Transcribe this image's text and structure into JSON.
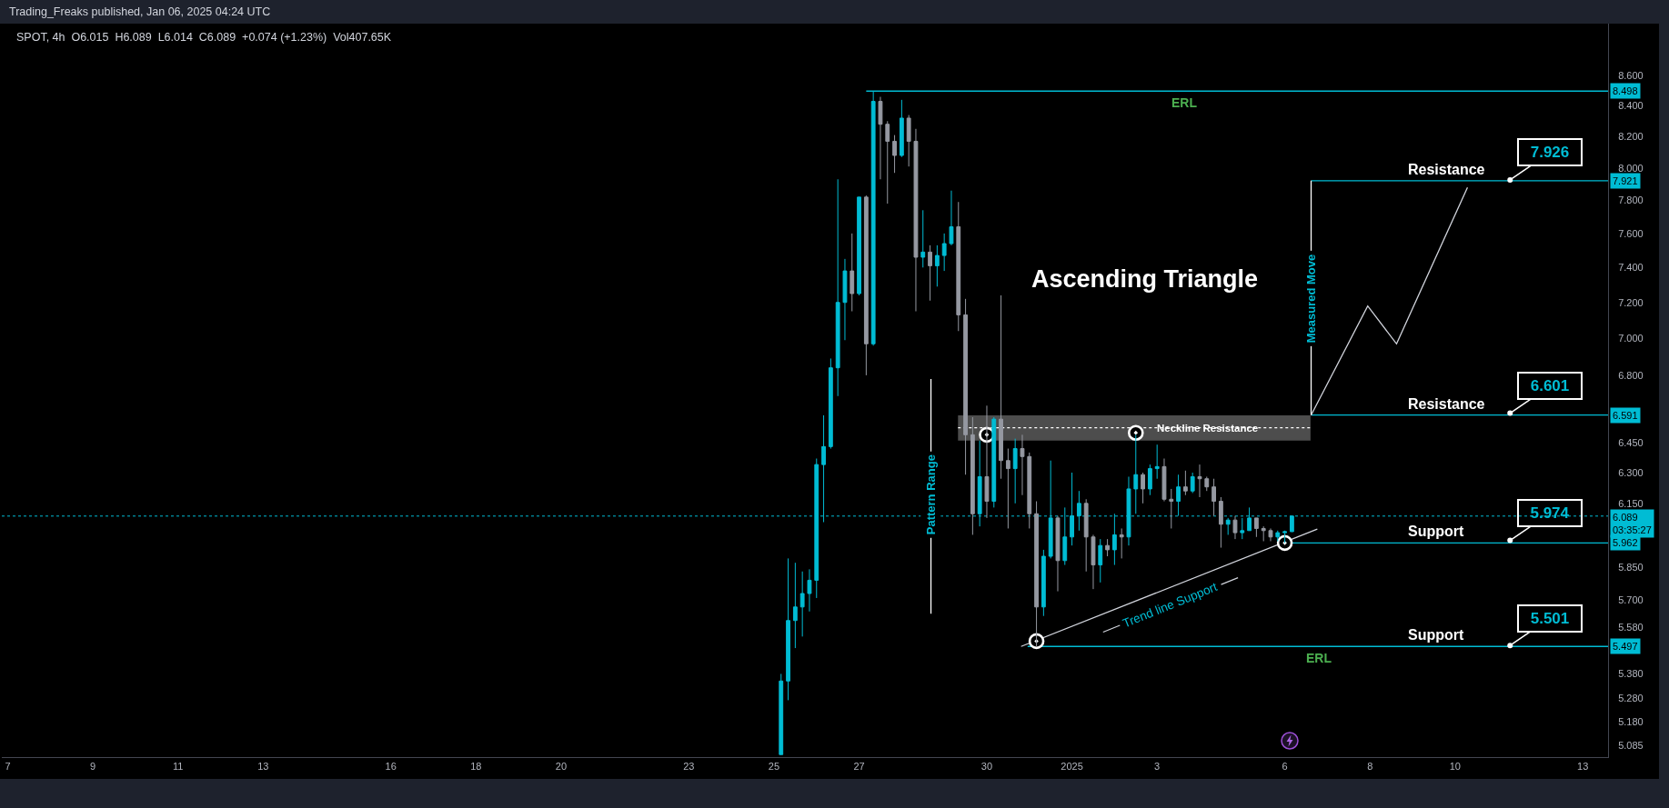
{
  "chart_data": {
    "type": "candlestick",
    "title": "Ascending Triangle",
    "subtitle": "SPOT, 4h  O6.015  H6.089  L6.014  C6.089  +0.074 (+1.23%)  Vol407.65K",
    "annotations": [
      "Trading_Freaks published, Jan 06, 2025 04:24 UTC",
      {
        "text": "ERL",
        "x": "2025-01-03T15:30",
        "y": 8.498
      },
      {
        "text": "Resistance",
        "x": "2025-01-09T19:20",
        "y": 7.921
      },
      {
        "text": "7.926",
        "x": "2025-01-11T07:00",
        "y": 7.926
      },
      {
        "text": "Resistance",
        "x": "2025-01-09T19:20",
        "y": 6.591
      },
      {
        "text": "6.601",
        "x": "2025-01-11T07:00",
        "y": 6.601
      },
      {
        "text": "Support",
        "x": "2025-01-09T13:15",
        "y": 5.962
      },
      {
        "text": "5.974",
        "x": "2025-01-11T07:00",
        "y": 5.974
      },
      {
        "text": "Support",
        "x": "2025-01-09T13:15",
        "y": 5.497
      },
      {
        "text": "5.501",
        "x": "2025-01-11T07:00",
        "y": 5.501
      },
      {
        "text": "ERL",
        "x": "2025-01-06T19:10",
        "y": 5.497
      },
      {
        "text": "Neckline Resistance",
        "x": "2025-01-04T04:15",
        "y": 6.526
      },
      {
        "text": "Pattern Range",
        "x": "2024-12-28T16:30",
        "y": 6.19
      },
      {
        "text": "Measured Move",
        "x": "2025-01-06T14:50",
        "y": 7.22
      },
      "Trend line Support"
    ],
    "log": "y",
    "xlim": [
      "2024-12-06T20:40",
      "2025-01-13T14:15"
    ],
    "xticks": [
      {
        "value": "2024-12-07",
        "label": "7"
      },
      {
        "value": "2024-12-09",
        "label": "9"
      },
      {
        "value": "2024-12-11",
        "label": "11"
      },
      {
        "value": "2024-12-13",
        "label": "13"
      },
      {
        "value": "2024-12-16",
        "label": "16"
      },
      {
        "value": "2024-12-18",
        "label": "18"
      },
      {
        "value": "2024-12-20",
        "label": "20"
      },
      {
        "value": "2024-12-23",
        "label": "23"
      },
      {
        "value": "2024-12-25",
        "label": "25"
      },
      {
        "value": "2024-12-27",
        "label": "27"
      },
      {
        "value": "2024-12-30",
        "label": "30"
      },
      {
        "value": "2025-01-01",
        "label": "2025"
      },
      {
        "value": "2025-01-03",
        "label": "3"
      },
      {
        "value": "2025-01-06",
        "label": "6"
      },
      {
        "value": "2025-01-08",
        "label": "8"
      },
      {
        "value": "2025-01-10",
        "label": "10"
      },
      {
        "value": "2025-01-13",
        "label": "13"
      }
    ],
    "ylim": [
      5.04,
      8.96
    ],
    "yticks": [
      {
        "value": 8.6,
        "label": "8.600"
      },
      {
        "value": 8.4,
        "label": "8.400"
      },
      {
        "value": 8.2,
        "label": "8.200"
      },
      {
        "value": 8,
        "label": "8.000"
      },
      {
        "value": 7.8,
        "label": "7.800"
      },
      {
        "value": 7.6,
        "label": "7.600"
      },
      {
        "value": 7.4,
        "label": "7.400"
      },
      {
        "value": 7.2,
        "label": "7.200"
      },
      {
        "value": 7,
        "label": "7.000"
      },
      {
        "value": 6.8,
        "label": "6.800"
      },
      {
        "value": 6.45,
        "label": "6.450"
      },
      {
        "value": 6.3,
        "label": "6.300"
      },
      {
        "value": 6.15,
        "label": "6.150"
      },
      {
        "value": 5.85,
        "label": "5.850"
      },
      {
        "value": 5.7,
        "label": "5.700"
      },
      {
        "value": 5.58,
        "label": "5.580"
      },
      {
        "value": 5.38,
        "label": "5.380"
      },
      {
        "value": 5.28,
        "label": "5.280"
      },
      {
        "value": 5.18,
        "label": "5.180"
      },
      {
        "value": 5.085,
        "label": "5.085"
      }
    ],
    "x": [
      "2024-12-25T04:00",
      "2024-12-25T08:00",
      "2024-12-25T12:00",
      "2024-12-25T16:00",
      "2024-12-25T20:00",
      "2024-12-26T00:00",
      "2024-12-26T04:00",
      "2024-12-26T08:00",
      "2024-12-26T12:00",
      "2024-12-26T16:00",
      "2024-12-26T20:00",
      "2024-12-27T00:00",
      "2024-12-27T04:00",
      "2024-12-27T08:00",
      "2024-12-27T12:00",
      "2024-12-27T16:00",
      "2024-12-27T20:00",
      "2024-12-28T00:00",
      "2024-12-28T04:00",
      "2024-12-28T08:00",
      "2024-12-28T12:00",
      "2024-12-28T16:00",
      "2024-12-28T20:00",
      "2024-12-29T00:00",
      "2024-12-29T04:00",
      "2024-12-29T08:00",
      "2024-12-29T12:00",
      "2024-12-29T16:00",
      "2024-12-29T20:00",
      "2024-12-30T00:00",
      "2024-12-30T04:00",
      "2024-12-30T08:00",
      "2024-12-30T12:00",
      "2024-12-30T16:00",
      "2024-12-30T20:00",
      "2024-12-31T00:00",
      "2024-12-31T04:00",
      "2024-12-31T08:00",
      "2024-12-31T12:00",
      "2024-12-31T16:00",
      "2024-12-31T20:00",
      "2025-01-01T00:00",
      "2025-01-01T04:00",
      "2025-01-01T08:00",
      "2025-01-01T12:00",
      "2025-01-01T16:00",
      "2025-01-01T20:00",
      "2025-01-02T00:00",
      "2025-01-02T04:00",
      "2025-01-02T08:00",
      "2025-01-02T12:00",
      "2025-01-02T16:00",
      "2025-01-02T20:00",
      "2025-01-03T00:00",
      "2025-01-03T04:00",
      "2025-01-03T08:00",
      "2025-01-03T12:00",
      "2025-01-03T16:00",
      "2025-01-03T20:00",
      "2025-01-04T00:00",
      "2025-01-04T04:00",
      "2025-01-04T08:00",
      "2025-01-04T12:00",
      "2025-01-04T16:00",
      "2025-01-04T20:00",
      "2025-01-05T00:00",
      "2025-01-05T04:00",
      "2025-01-05T08:00",
      "2025-01-05T12:00",
      "2025-01-05T16:00",
      "2025-01-05T20:00",
      "2025-01-06T00:00",
      "2025-01-06T04:00"
    ],
    "ohlc": [
      [
        5.05,
        5.38,
        5.05,
        5.35
      ],
      [
        5.35,
        5.89,
        5.27,
        5.61
      ],
      [
        5.61,
        5.87,
        5.49,
        5.67
      ],
      [
        5.67,
        5.83,
        5.54,
        5.73
      ],
      [
        5.73,
        5.84,
        5.65,
        5.79
      ],
      [
        5.79,
        6.37,
        5.71,
        6.34
      ],
      [
        6.34,
        6.59,
        6.06,
        6.43
      ],
      [
        6.43,
        6.89,
        6.42,
        6.84
      ],
      [
        6.84,
        7.93,
        6.69,
        7.2
      ],
      [
        7.2,
        7.45,
        6.99,
        7.38
      ],
      [
        7.38,
        7.6,
        7.15,
        7.25
      ],
      [
        7.25,
        7.82,
        7.24,
        7.82
      ],
      [
        7.82,
        7.83,
        6.8,
        6.97
      ],
      [
        6.97,
        8.498,
        6.96,
        8.43
      ],
      [
        8.43,
        8.46,
        7.93,
        8.28
      ],
      [
        8.28,
        8.3,
        7.78,
        8.17
      ],
      [
        8.17,
        8.21,
        7.97,
        8.08
      ],
      [
        8.08,
        8.44,
        8.07,
        8.32
      ],
      [
        8.32,
        8.34,
        8.01,
        8.17
      ],
      [
        8.17,
        8.25,
        7.15,
        7.46
      ],
      [
        7.46,
        7.74,
        7.4,
        7.49
      ],
      [
        7.49,
        7.53,
        7.21,
        7.41
      ],
      [
        7.41,
        7.53,
        7.29,
        7.47
      ],
      [
        7.47,
        7.6,
        7.38,
        7.54
      ],
      [
        7.54,
        7.86,
        7.53,
        7.64
      ],
      [
        7.64,
        7.79,
        7.04,
        7.13
      ],
      [
        7.13,
        7.22,
        6.29,
        6.49
      ],
      [
        6.49,
        6.58,
        6.0,
        6.1
      ],
      [
        6.1,
        6.46,
        6.04,
        6.28
      ],
      [
        6.28,
        6.64,
        6.08,
        6.16
      ],
      [
        6.16,
        6.58,
        6.13,
        6.57
      ],
      [
        6.57,
        7.24,
        6.27,
        6.36
      ],
      [
        6.36,
        6.42,
        6.03,
        6.32
      ],
      [
        6.32,
        6.47,
        6.15,
        6.42
      ],
      [
        6.42,
        6.49,
        6.19,
        6.38
      ],
      [
        6.38,
        6.4,
        6.03,
        6.1
      ],
      [
        6.1,
        6.16,
        5.497,
        5.67
      ],
      [
        5.67,
        5.93,
        5.63,
        5.9
      ],
      [
        5.9,
        6.36,
        5.89,
        6.08
      ],
      [
        6.08,
        6.09,
        5.74,
        5.88
      ],
      [
        5.88,
        6.13,
        5.86,
        5.99
      ],
      [
        5.99,
        6.3,
        5.95,
        6.09
      ],
      [
        6.09,
        6.21,
        6.02,
        6.15
      ],
      [
        6.15,
        6.17,
        5.83,
        5.99
      ],
      [
        5.99,
        6.0,
        5.75,
        5.86
      ],
      [
        5.86,
        5.98,
        5.78,
        5.95
      ],
      [
        5.95,
        5.98,
        5.9,
        5.93
      ],
      [
        5.93,
        6.1,
        5.86,
        6.0
      ],
      [
        6.0,
        6.03,
        5.89,
        5.99
      ],
      [
        5.99,
        6.28,
        5.95,
        6.22
      ],
      [
        6.22,
        6.49,
        6.1,
        6.29
      ],
      [
        6.29,
        6.3,
        6.15,
        6.22
      ],
      [
        6.22,
        6.34,
        6.19,
        6.32
      ],
      [
        6.32,
        6.44,
        6.27,
        6.33
      ],
      [
        6.33,
        6.37,
        6.16,
        6.17
      ],
      [
        6.17,
        6.22,
        6.03,
        6.16
      ],
      [
        6.16,
        6.29,
        6.09,
        6.23
      ],
      [
        6.23,
        6.31,
        6.19,
        6.21
      ],
      [
        6.21,
        6.3,
        6.2,
        6.28
      ],
      [
        6.28,
        6.34,
        6.18,
        6.27
      ],
      [
        6.27,
        6.28,
        6.21,
        6.23
      ],
      [
        6.23,
        6.27,
        6.09,
        6.16
      ],
      [
        6.16,
        6.18,
        5.94,
        6.05
      ],
      [
        6.05,
        6.08,
        6.0,
        6.07
      ],
      [
        6.07,
        6.09,
        5.98,
        6.01
      ],
      [
        6.01,
        6.08,
        5.98,
        6.02
      ],
      [
        6.02,
        6.13,
        6.02,
        6.08
      ],
      [
        6.08,
        6.08,
        5.99,
        6.03
      ],
      [
        6.03,
        6.04,
        5.97,
        6.02
      ],
      [
        6.02,
        6.03,
        5.97,
        5.99
      ],
      [
        5.99,
        6.02,
        5.97,
        6.01
      ],
      [
        6.01,
        6.02,
        5.962,
        6.015
      ],
      [
        6.015,
        6.089,
        6.014,
        6.089
      ]
    ],
    "colors": [
      "#00bcd4",
      "#00bcd4",
      "#00bcd4",
      "#00bcd4",
      "#00bcd4",
      "#00bcd4",
      "#00bcd4",
      "#00bcd4",
      "#00bcd4",
      "#00bcd4",
      "#9598a1",
      "#00bcd4",
      "#9598a1",
      "#00bcd4",
      "#9598a1",
      "#9598a1",
      "#9598a1",
      "#00bcd4",
      "#9598a1",
      "#9598a1",
      "#00bcd4",
      "#9598a1",
      "#00bcd4",
      "#00bcd4",
      "#00bcd4",
      "#9598a1",
      "#9598a1",
      "#9598a1",
      "#00bcd4",
      "#9598a1",
      "#00bcd4",
      "#9598a1",
      "#9598a1",
      "#00bcd4",
      "#9598a1",
      "#9598a1",
      "#9598a1",
      "#00bcd4",
      "#00bcd4",
      "#9598a1",
      "#00bcd4",
      "#00bcd4",
      "#00bcd4",
      "#9598a1",
      "#9598a1",
      "#00bcd4",
      "#9598a1",
      "#00bcd4",
      "#9598a1",
      "#00bcd4",
      "#00bcd4",
      "#9598a1",
      "#00bcd4",
      "#00bcd4",
      "#9598a1",
      "#9598a1",
      "#00bcd4",
      "#9598a1",
      "#00bcd4",
      "#9598a1",
      "#9598a1",
      "#9598a1",
      "#9598a1",
      "#00bcd4",
      "#9598a1",
      "#00bcd4",
      "#00bcd4",
      "#9598a1",
      "#9598a1",
      "#9598a1",
      "#00bcd4",
      "#00bcd4",
      "#00bcd4"
    ],
    "series": [
      {
        "type": "line",
        "x": [
          "2024-12-27T04:00",
          "2025-01-13T14:15"
        ],
        "values": [
          8.498,
          8.498
        ],
        "color": "#00bcd4",
        "value_labels": [
          null,
          "8.498"
        ]
      },
      {
        "type": "line",
        "x": [
          "2025-01-06T14:50",
          "2025-01-13T14:15"
        ],
        "values": [
          7.921,
          7.921
        ],
        "color": "#00bcd4",
        "value_labels": [
          null,
          "7.921"
        ]
      },
      {
        "type": "line",
        "x": [
          "2025-01-06T14:50",
          "2025-01-13T14:15"
        ],
        "values": [
          6.591,
          6.591
        ],
        "color": "#00bcd4",
        "value_labels": [
          null,
          "6.591"
        ]
      },
      {
        "type": "line",
        "x": [
          "2025-01-06T00:00",
          "2025-01-13T14:15"
        ],
        "values": [
          5.962,
          5.962
        ],
        "color": "#00bcd4",
        "value_labels": [
          null,
          "5.962"
        ]
      },
      {
        "type": "line",
        "x": [
          "2024-12-30T23:00",
          "2025-01-13T14:15"
        ],
        "values": [
          5.497,
          5.497
        ],
        "color": "#00bcd4",
        "value_labels": [
          null,
          "5.497"
        ]
      },
      {
        "type": "line",
        "x": [
          "2024-12-29T07:45",
          "2025-01-06T14:30"
        ],
        "values": [
          6.526,
          6.526
        ],
        "lower": [
          6.461,
          6.461
        ],
        "upper": [
          6.59,
          6.59
        ],
        "color": "#ffffff",
        "line_style": "dotted"
      },
      {
        "type": "line",
        "x": [
          "2024-12-30T19:20",
          "2025-01-06T18:20"
        ],
        "values": [
          5.497,
          6.027
        ],
        "color": "#d1d4dc"
      },
      {
        "type": "line",
        "x": [
          "2025-01-06T14:50",
          "2025-01-06T14:50"
        ],
        "values": [
          6.591,
          7.921
        ],
        "color": "#ffffff"
      },
      {
        "type": "line",
        "x": [
          "2025-01-06T14:50",
          "2025-01-07T22:45",
          "2025-01-08T15:00",
          "2025-01-10T07:00"
        ],
        "values": [
          6.591,
          7.18,
          6.97,
          7.88
        ],
        "color": "#d1d4dc"
      },
      {
        "type": "line",
        "x": [
          "2024-12-28T16:30",
          "2024-12-28T16:30"
        ],
        "values": [
          6.78,
          5.64
        ],
        "color": "#ffffff"
      },
      {
        "type": "scatter",
        "x": [
          "2024-12-30T00:00",
          "2024-12-31T04:00",
          "2025-01-02T12:00",
          "2025-01-06T00:00"
        ],
        "values": [
          6.49,
          5.52,
          6.5,
          5.962
        ],
        "color": "#ffffff",
        "marker": "circle"
      }
    ],
    "ref_lines": [
      {
        "axis": "y",
        "value": 6.089,
        "label": "6.089\n03:35:27",
        "color": "#00bcd4",
        "line_style": "dotted"
      }
    ]
  }
}
